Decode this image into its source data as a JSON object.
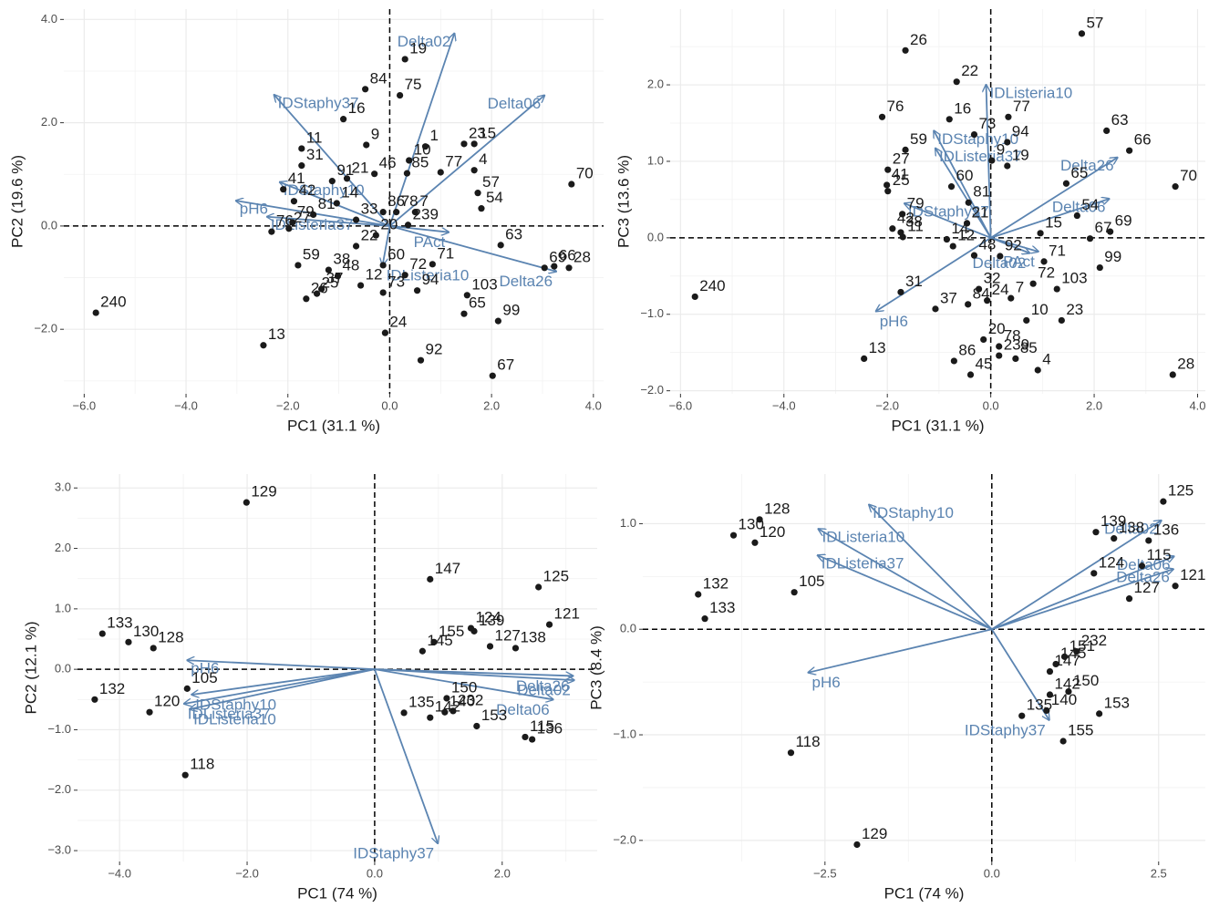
{
  "chart_data": [
    {
      "type": "biplot",
      "x_label": "PC1 (31.1 %)",
      "y_label": "PC2 (19.6 %)",
      "xlim": [
        -6.4,
        4.2
      ],
      "ylim": [
        -3.25,
        4.2
      ],
      "xticks": [
        {
          "value": -6,
          "label": "−6.0"
        },
        {
          "value": -4,
          "label": "−4.0"
        },
        {
          "value": -2,
          "label": "−2.0"
        },
        {
          "value": 0,
          "label": "0.0"
        },
        {
          "value": 2,
          "label": "2.0"
        },
        {
          "value": 4,
          "label": "4.0"
        }
      ],
      "yticks": [
        {
          "value": -2,
          "label": "−2.0"
        },
        {
          "value": 0,
          "label": "0.0"
        },
        {
          "value": 2,
          "label": "2.0"
        },
        {
          "value": 4,
          "label": "4.0"
        }
      ],
      "grid": true,
      "point_color": "#1a1a1a",
      "arrow_color": "#5b84b1",
      "points": {
        "labels": [
          "240",
          "13",
          "26",
          "25",
          "37",
          "59",
          "38",
          "27",
          "76",
          "79",
          "41",
          "31",
          "11",
          "16",
          "84",
          "19",
          "75",
          "9",
          "21",
          "91",
          "46",
          "42",
          "14",
          "81",
          "22",
          "33",
          "86",
          "85",
          "78",
          "1",
          "23",
          "15",
          "10",
          "77",
          "4",
          "57",
          "7",
          "54",
          "239",
          "20",
          "60",
          "72",
          "48",
          "12",
          "73",
          "24",
          "92",
          "94",
          "71",
          "63",
          "103",
          "65",
          "99",
          "67",
          "69",
          "66",
          "28",
          "70"
        ],
        "x": [
          -5.77,
          -2.48,
          -1.64,
          -1.43,
          -1.34,
          -1.8,
          -1.2,
          -1.98,
          -2.32,
          -1.91,
          -2.09,
          -1.73,
          -1.73,
          -0.91,
          -0.48,
          0.3,
          0.2,
          -0.46,
          -0.84,
          -1.13,
          -0.3,
          -1.88,
          -1.04,
          -1.5,
          -0.66,
          -0.66,
          -0.13,
          0.34,
          0.13,
          0.7,
          1.46,
          1.66,
          0.38,
          1.0,
          1.66,
          1.73,
          0.5,
          1.8,
          0.36,
          -0.27,
          -0.13,
          0.3,
          -1.02,
          -0.57,
          -0.13,
          -0.09,
          0.61,
          0.54,
          0.84,
          2.18,
          1.52,
          1.46,
          2.13,
          2.02,
          3.04,
          3.23,
          3.52,
          3.57
        ],
        "y": [
          -1.68,
          -2.31,
          -1.41,
          -1.31,
          -1.22,
          -0.76,
          -0.85,
          -0.05,
          -0.11,
          0.07,
          0.71,
          1.17,
          1.5,
          2.07,
          2.65,
          3.23,
          2.53,
          1.57,
          0.92,
          0.87,
          1.01,
          0.48,
          0.44,
          0.22,
          -0.39,
          0.12,
          0.27,
          1.02,
          0.27,
          1.54,
          1.59,
          1.59,
          1.27,
          1.04,
          1.08,
          0.64,
          0.27,
          0.34,
          0.02,
          -0.18,
          -0.76,
          -0.95,
          -0.97,
          -1.15,
          -1.29,
          -2.07,
          -2.6,
          -1.25,
          -0.74,
          -0.37,
          -1.34,
          -1.7,
          -1.84,
          -2.9,
          -0.81,
          -0.78,
          -0.81,
          0.81
        ]
      },
      "arrows": {
        "labels": [
          "Delta02",
          "Delta06",
          "IDStaphy37",
          "pH6",
          "IDStaphy10",
          "IDListeria37",
          "IDListeria10",
          "PAct",
          "Delta26"
        ],
        "x": [
          1.27,
          3.04,
          -2.27,
          -3.02,
          -2.16,
          -2.41,
          -0.14,
          1.16,
          3.27
        ],
        "y": [
          3.73,
          2.53,
          2.54,
          0.49,
          0.85,
          0.18,
          -0.76,
          -0.12,
          -0.88
        ]
      }
    },
    {
      "type": "biplot",
      "x_label": "PC1 (31.1 %)",
      "y_label": "PC3 (13.6 %)",
      "xlim": [
        -6.2,
        4.15
      ],
      "ylim": [
        -2.04,
        2.99
      ],
      "xticks": [
        {
          "value": -6,
          "label": "−6.0"
        },
        {
          "value": -4,
          "label": "−4.0"
        },
        {
          "value": -2,
          "label": "−2.0"
        },
        {
          "value": 0,
          "label": "0.0"
        },
        {
          "value": 2,
          "label": "2.0"
        },
        {
          "value": 4,
          "label": "4.0"
        }
      ],
      "yticks": [
        {
          "value": -2,
          "label": "−2.0"
        },
        {
          "value": -1,
          "label": "−1.0"
        },
        {
          "value": 0,
          "label": "0.0"
        },
        {
          "value": 1,
          "label": "1.0"
        },
        {
          "value": 2,
          "label": "2.0"
        }
      ],
      "grid": true,
      "point_color": "#1a1a1a",
      "arrow_color": "#5b84b1",
      "points": {
        "labels": [
          "240",
          "13",
          "26",
          "57",
          "22",
          "77",
          "76",
          "16",
          "73",
          "63",
          "66",
          "70",
          "94",
          "9",
          "19",
          "65",
          "59",
          "27",
          "25",
          "41",
          "60",
          "81",
          "79",
          "38",
          "42",
          "11",
          "14",
          "12",
          "21",
          "48",
          "92",
          "71",
          "15",
          "54",
          "69",
          "67",
          "99",
          "103",
          "72",
          "32",
          "31",
          "37",
          "84",
          "24",
          "7",
          "10",
          "23",
          "20",
          "78",
          "239",
          "86",
          "45",
          "4",
          "28",
          "85"
        ],
        "x": [
          -5.72,
          -2.45,
          -1.65,
          1.76,
          -0.66,
          0.34,
          -2.1,
          -0.8,
          -0.32,
          2.24,
          2.68,
          3.57,
          0.32,
          0.02,
          0.32,
          1.46,
          -1.65,
          -1.99,
          -1.99,
          -2.01,
          -0.76,
          -0.43,
          -1.71,
          -1.74,
          -1.9,
          -1.7,
          -0.85,
          -0.73,
          -0.46,
          -0.32,
          0.18,
          1.03,
          0.96,
          1.67,
          2.31,
          1.92,
          2.11,
          1.28,
          0.82,
          -0.23,
          -1.74,
          -1.07,
          -0.44,
          -0.07,
          0.39,
          0.69,
          1.37,
          -0.14,
          0.16,
          0.16,
          -0.71,
          -0.39,
          0.91,
          3.52,
          0.48
        ],
        "y": [
          -0.77,
          -1.58,
          2.45,
          2.67,
          2.04,
          1.58,
          1.58,
          1.55,
          1.35,
          1.4,
          1.14,
          0.67,
          1.25,
          1.01,
          0.94,
          0.71,
          1.15,
          0.89,
          0.61,
          0.69,
          0.67,
          0.46,
          0.31,
          0.07,
          0.12,
          0.01,
          -0.02,
          -0.11,
          0.19,
          -0.23,
          -0.24,
          -0.31,
          0.06,
          0.29,
          0.08,
          -0.01,
          -0.39,
          -0.67,
          -0.6,
          -0.67,
          -0.71,
          -0.93,
          -0.87,
          -0.82,
          -0.79,
          -1.08,
          -1.08,
          -1.33,
          -1.42,
          -1.54,
          -1.61,
          -1.79,
          -1.73,
          -1.79,
          -1.58
        ]
      },
      "arrows": {
        "labels": [
          "IDListeria10",
          "IDStaphy10",
          "IDListeria37",
          "Delta26",
          "Delta06",
          "IDStaphy37",
          "PAct",
          "Delta02",
          "pH6"
        ],
        "x": [
          -0.09,
          -1.1,
          -1.07,
          2.45,
          2.29,
          -1.67,
          0.92,
          0.75,
          -2.22
        ],
        "y": [
          2.0,
          1.4,
          1.17,
          1.05,
          0.51,
          0.45,
          -0.18,
          -0.2,
          -0.96
        ]
      }
    },
    {
      "type": "biplot",
      "x_label": "PC1 (74 %)",
      "y_label": "PC2 (12.1 %)",
      "xlim": [
        -4.66,
        3.49
      ],
      "ylim": [
        -3.18,
        3.23
      ],
      "xticks": [
        {
          "value": -4,
          "label": "−4.0"
        },
        {
          "value": -2,
          "label": "−2.0"
        },
        {
          "value": 0,
          "label": "0.0"
        },
        {
          "value": 2,
          "label": "2.0"
        }
      ],
      "yticks": [
        {
          "value": -3,
          "label": "−3.0"
        },
        {
          "value": -2,
          "label": "−2.0"
        },
        {
          "value": -1,
          "label": "−1.0"
        },
        {
          "value": 0,
          "label": "0.0"
        },
        {
          "value": 1,
          "label": "1.0"
        },
        {
          "value": 2,
          "label": "2.0"
        },
        {
          "value": 3,
          "label": "3.0"
        }
      ],
      "grid": true,
      "point_color": "#1a1a1a",
      "arrow_color": "#5b84b1",
      "points": {
        "labels": [
          "129",
          "147",
          "124",
          "125",
          "121",
          "155",
          "139",
          "138",
          "127",
          "145",
          "133",
          "130",
          "128",
          "132",
          "120",
          "105",
          "118",
          "150",
          "232",
          "135",
          "142",
          "140",
          "153",
          "136",
          "115"
        ],
        "x": [
          -2.01,
          0.87,
          1.51,
          2.57,
          2.74,
          0.93,
          1.56,
          2.21,
          1.81,
          0.75,
          -4.27,
          -3.86,
          -3.47,
          -4.39,
          -3.53,
          -2.94,
          -2.97,
          1.13,
          1.23,
          0.46,
          0.87,
          1.1,
          1.6,
          2.47,
          2.36
        ],
        "y": [
          2.76,
          1.49,
          0.68,
          1.36,
          0.74,
          0.45,
          0.63,
          0.35,
          0.38,
          0.3,
          0.59,
          0.45,
          0.35,
          -0.5,
          -0.71,
          -0.32,
          -1.75,
          -0.48,
          -0.69,
          -0.72,
          -0.8,
          -0.71,
          -0.94,
          -1.16,
          -1.12
        ]
      },
      "arrows": {
        "labels": [
          "pH6",
          "IDStaphy10",
          "IDListeria37",
          "IDListeria10",
          "Delta26",
          "Delta02",
          "Delta06",
          "IDStaphy37"
        ],
        "x": [
          -2.94,
          -2.87,
          -2.99,
          -2.9,
          3.11,
          3.13,
          2.8,
          0.99
        ],
        "y": [
          0.15,
          -0.42,
          -0.57,
          -0.66,
          -0.11,
          -0.18,
          -0.5,
          -2.88
        ]
      }
    },
    {
      "type": "biplot",
      "x_label": "PC1 (74 %)",
      "y_label": "PC3 (8.4 %)",
      "xlim": [
        -5.23,
        3.2
      ],
      "ylim": [
        -2.2,
        1.47
      ],
      "xticks": [
        {
          "value": -2.5,
          "label": "−2.5"
        },
        {
          "value": 0,
          "label": "0.0"
        },
        {
          "value": 2.5,
          "label": "2.5"
        }
      ],
      "yticks": [
        {
          "value": -2,
          "label": "−2.0"
        },
        {
          "value": -1,
          "label": "−1.0"
        },
        {
          "value": 0,
          "label": "0.0"
        },
        {
          "value": 1,
          "label": "1.0"
        }
      ],
      "grid": true,
      "point_color": "#1a1a1a",
      "arrow_color": "#5b84b1",
      "points": {
        "labels": [
          "128",
          "130",
          "120",
          "132",
          "133",
          "105",
          "118",
          "129",
          "125",
          "136",
          "139",
          "138",
          "124",
          "115",
          "127",
          "121",
          "232",
          "145",
          "151",
          "147",
          "150",
          "142",
          "135",
          "140",
          "153",
          "155"
        ],
        "x": [
          -3.48,
          -3.87,
          -3.55,
          -4.4,
          -4.3,
          -2.96,
          -3.01,
          -2.02,
          2.57,
          2.35,
          1.56,
          1.83,
          1.53,
          2.25,
          2.06,
          2.75,
          1.27,
          0.96,
          1.09,
          0.87,
          1.15,
          0.87,
          0.45,
          0.82,
          1.61,
          1.07
        ],
        "y": [
          1.04,
          0.89,
          0.82,
          0.33,
          0.1,
          0.35,
          -1.17,
          -2.04,
          1.21,
          0.84,
          0.92,
          0.86,
          0.53,
          0.6,
          0.29,
          0.41,
          -0.21,
          -0.33,
          -0.26,
          -0.4,
          -0.59,
          -0.62,
          -0.82,
          -0.77,
          -0.8,
          -1.06
        ]
      },
      "arrows": {
        "labels": [
          "Delta02",
          "Delta06",
          "Delta26",
          "IDStaphy10",
          "IDListeria10",
          "IDListeria37",
          "pH6",
          "IDStaphy37"
        ],
        "x": [
          2.54,
          2.73,
          2.72,
          -1.84,
          -2.6,
          -2.61,
          -2.75,
          0.86
        ],
        "y": [
          1.03,
          0.69,
          0.57,
          1.18,
          0.95,
          0.7,
          -0.41,
          -0.86
        ]
      }
    }
  ]
}
